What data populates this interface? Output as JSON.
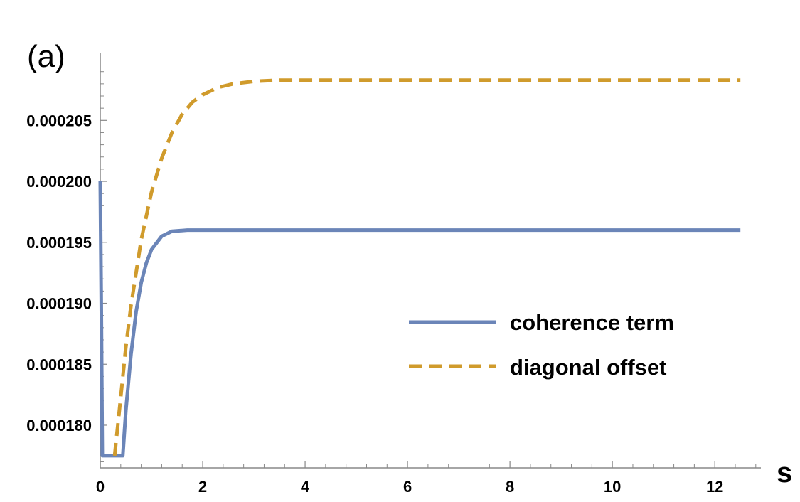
{
  "panel_label": "(a)",
  "colors": {
    "series_0": "#6b85b8",
    "series_1": "#d09b2c",
    "axis": "#888888"
  },
  "chart_data": {
    "type": "line",
    "xlabel": "s",
    "ylabel": "",
    "xlim": [
      0,
      12.9
    ],
    "ylim": [
      0.0001765,
      0.0002105
    ],
    "xticks": [
      0,
      2,
      4,
      6,
      8,
      10,
      12
    ],
    "xtick_labels": [
      "0",
      "2",
      "4",
      "6",
      "8",
      "10",
      "12"
    ],
    "yticks": [
      0.00018,
      0.000185,
      0.00019,
      0.000195,
      0.0002,
      0.000205
    ],
    "ytick_labels": [
      "0.000180",
      "0.000185",
      "0.000190",
      "0.000195",
      "0.000200",
      "0.000205"
    ],
    "legend_position": "center-right",
    "grid": false,
    "series": [
      {
        "name": "coherence term",
        "style": "solid",
        "color": "#6b85b8",
        "points": [
          [
            0.0,
            0.0002
          ],
          [
            0.02,
            0.00019
          ],
          [
            0.04,
            0.0001775
          ],
          [
            0.44,
            0.0001775
          ],
          [
            0.5,
            0.0001812
          ],
          [
            0.6,
            0.0001858
          ],
          [
            0.7,
            0.0001893
          ],
          [
            0.8,
            0.0001917
          ],
          [
            0.9,
            0.0001933
          ],
          [
            1.0,
            0.0001944
          ],
          [
            1.2,
            0.0001955
          ],
          [
            1.4,
            0.0001959
          ],
          [
            1.7,
            0.000196
          ],
          [
            2.0,
            0.000196
          ],
          [
            3.0,
            0.000196
          ],
          [
            6.0,
            0.000196
          ],
          [
            9.0,
            0.000196
          ],
          [
            12.5,
            0.000196
          ]
        ]
      },
      {
        "name": "diagonal offset",
        "style": "dashed",
        "color": "#d09b2c",
        "points": [
          [
            0.28,
            0.0001775
          ],
          [
            0.4,
            0.0001823
          ],
          [
            0.5,
            0.0001864
          ],
          [
            0.6,
            0.0001898
          ],
          [
            0.8,
            0.0001952
          ],
          [
            1.0,
            0.0001991
          ],
          [
            1.2,
            0.0002019
          ],
          [
            1.4,
            0.000204
          ],
          [
            1.6,
            0.0002055
          ],
          [
            1.8,
            0.0002065
          ],
          [
            2.0,
            0.0002071
          ],
          [
            2.3,
            0.0002077
          ],
          [
            2.6,
            0.000208
          ],
          [
            3.0,
            0.0002082
          ],
          [
            3.5,
            0.0002083
          ],
          [
            4.0,
            0.0002083
          ],
          [
            6.0,
            0.0002083
          ],
          [
            9.0,
            0.0002083
          ],
          [
            12.5,
            0.0002083
          ]
        ]
      }
    ]
  }
}
